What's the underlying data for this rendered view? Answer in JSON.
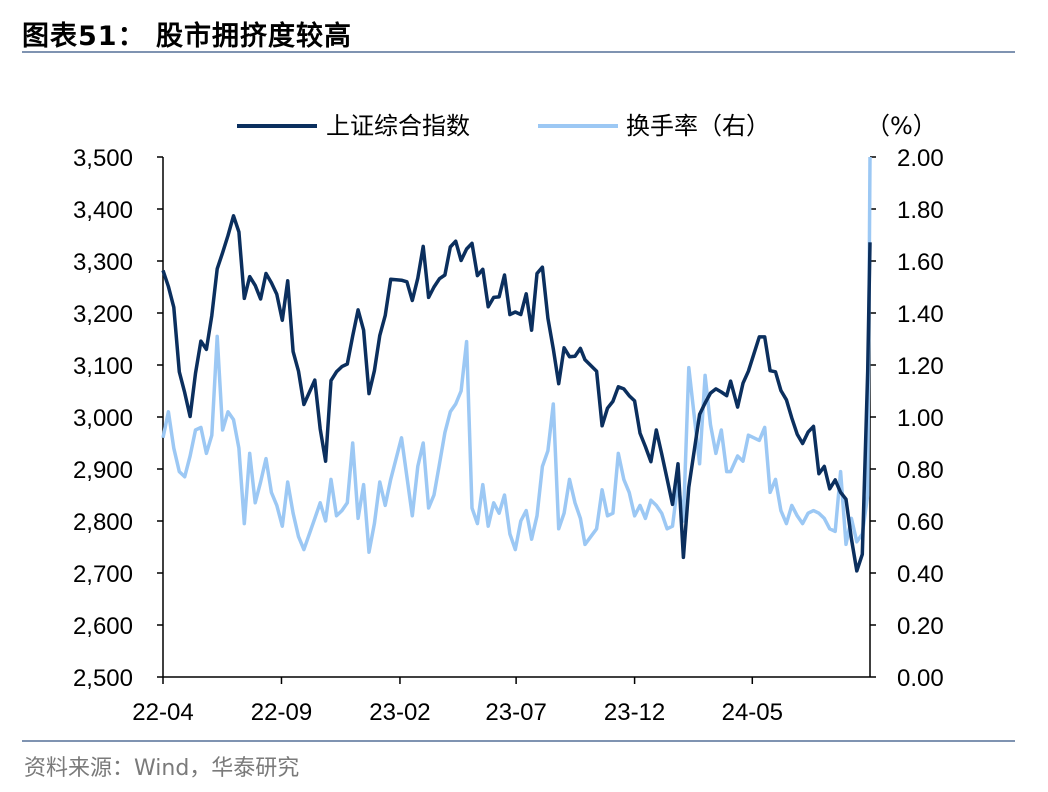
{
  "header": {
    "title": "图表51：  股市拥挤度较高"
  },
  "footer": {
    "source": "资料来源：Wind，华泰研究"
  },
  "colors": {
    "index_line": "#0b2f5e",
    "turnover_line": "#9cc8f4",
    "rule": "#7f93b1"
  },
  "chart_data": {
    "type": "line",
    "title": "",
    "right_axis_unit": "（%）",
    "x_tick_labels": [
      "22-04",
      "22-09",
      "23-02",
      "23-07",
      "23-12",
      "24-05"
    ],
    "x_range": [
      "2022-04",
      "2024-09"
    ],
    "y_left": {
      "ticks": [
        "2,500",
        "2,600",
        "2,700",
        "2,800",
        "2,900",
        "3,000",
        "3,100",
        "3,200",
        "3,300",
        "3,400",
        "3,500"
      ],
      "ylim": [
        2500,
        3500
      ]
    },
    "y_right": {
      "ticks": [
        "0.00",
        "0.20",
        "0.40",
        "0.60",
        "0.80",
        "1.00",
        "1.20",
        "1.40",
        "1.60",
        "1.80",
        "2.00"
      ],
      "ylim": [
        0,
        2.0
      ]
    },
    "legend_position": "top",
    "series": [
      {
        "name": "上证综合指数",
        "axis": "left",
        "x": [
          "2022-04-01",
          "2022-04-08",
          "2022-04-15",
          "2022-04-22",
          "2022-04-29",
          "2022-05-06",
          "2022-05-13",
          "2022-05-20",
          "2022-05-27",
          "2022-06-03",
          "2022-06-10",
          "2022-06-17",
          "2022-06-24",
          "2022-07-01",
          "2022-07-08",
          "2022-07-15",
          "2022-07-22",
          "2022-07-29",
          "2022-08-05",
          "2022-08-12",
          "2022-08-19",
          "2022-08-26",
          "2022-09-02",
          "2022-09-09",
          "2022-09-16",
          "2022-09-23",
          "2022-09-30",
          "2022-10-14",
          "2022-10-21",
          "2022-10-28",
          "2022-11-04",
          "2022-11-11",
          "2022-11-18",
          "2022-11-25",
          "2022-12-02",
          "2022-12-09",
          "2022-12-16",
          "2022-12-23",
          "2022-12-30",
          "2023-01-06",
          "2023-01-13",
          "2023-01-20",
          "2023-02-03",
          "2023-02-10",
          "2023-02-17",
          "2023-02-24",
          "2023-03-03",
          "2023-03-10",
          "2023-03-17",
          "2023-03-24",
          "2023-03-31",
          "2023-04-07",
          "2023-04-14",
          "2023-04-21",
          "2023-04-28",
          "2023-05-05",
          "2023-05-12",
          "2023-05-19",
          "2023-05-26",
          "2023-06-02",
          "2023-06-09",
          "2023-06-16",
          "2023-06-23",
          "2023-06-30",
          "2023-07-07",
          "2023-07-14",
          "2023-07-21",
          "2023-07-28",
          "2023-08-04",
          "2023-08-11",
          "2023-08-18",
          "2023-08-25",
          "2023-09-01",
          "2023-09-08",
          "2023-09-15",
          "2023-09-22",
          "2023-09-28",
          "2023-10-13",
          "2023-10-20",
          "2023-10-27",
          "2023-11-03",
          "2023-11-10",
          "2023-11-17",
          "2023-11-24",
          "2023-12-01",
          "2023-12-08",
          "2023-12-15",
          "2023-12-22",
          "2023-12-29",
          "2024-01-05",
          "2024-01-12",
          "2024-01-19",
          "2024-01-26",
          "2024-02-02",
          "2024-02-09",
          "2024-02-23",
          "2024-03-01",
          "2024-03-08",
          "2024-03-15",
          "2024-03-22",
          "2024-03-29",
          "2024-04-03",
          "2024-04-12",
          "2024-04-19",
          "2024-04-26",
          "2024-05-10",
          "2024-05-17",
          "2024-05-24",
          "2024-05-31",
          "2024-06-07",
          "2024-06-14",
          "2024-06-21",
          "2024-06-28",
          "2024-07-05",
          "2024-07-12",
          "2024-07-19",
          "2024-07-26",
          "2024-08-02",
          "2024-08-09",
          "2024-08-16",
          "2024-08-23",
          "2024-08-30",
          "2024-09-06",
          "2024-09-13",
          "2024-09-20",
          "2024-09-27",
          "2024-09-30"
        ],
        "values": [
          3282,
          3251,
          3211,
          3087,
          3047,
          3001,
          3084,
          3146,
          3130,
          3195,
          3285,
          3316,
          3349,
          3387,
          3356,
          3228,
          3270,
          3253,
          3227,
          3276,
          3258,
          3236,
          3186,
          3262,
          3126,
          3088,
          3024,
          3071,
          2977,
          2915,
          3070,
          3087,
          3097,
          3102,
          3156,
          3206,
          3167,
          3045,
          3089,
          3157,
          3195,
          3265,
          3263,
          3260,
          3224,
          3267,
          3328,
          3230,
          3250,
          3266,
          3273,
          3327,
          3338,
          3301,
          3323,
          3334,
          3272,
          3284,
          3212,
          3230,
          3231,
          3273,
          3197,
          3202,
          3197,
          3237,
          3167,
          3276,
          3288,
          3190,
          3131,
          3064,
          3133,
          3116,
          3117,
          3132,
          3110,
          3088,
          2983,
          3017,
          3030,
          3058,
          3054,
          3041,
          3031,
          2969,
          2943,
          2914,
          2975,
          2929,
          2881,
          2832,
          2910,
          2730,
          2865,
          3005,
          3027,
          3046,
          3054,
          3048,
          3041,
          3069,
          3019,
          3065,
          3088,
          3154,
          3154,
          3089,
          3087,
          3051,
          3033,
          2998,
          2967,
          2949,
          2971,
          2982,
          2891,
          2905,
          2862,
          2879,
          2855,
          2842,
          2766,
          2704,
          2736,
          3088,
          3336
        ]
      },
      {
        "name": "换手率（右）",
        "axis": "right",
        "x": [
          "2022-04-01",
          "2022-04-08",
          "2022-04-15",
          "2022-04-22",
          "2022-04-29",
          "2022-05-06",
          "2022-05-13",
          "2022-05-20",
          "2022-05-27",
          "2022-06-03",
          "2022-06-10",
          "2022-06-17",
          "2022-06-24",
          "2022-07-01",
          "2022-07-08",
          "2022-07-15",
          "2022-07-22",
          "2022-07-29",
          "2022-08-05",
          "2022-08-12",
          "2022-08-19",
          "2022-08-26",
          "2022-09-02",
          "2022-09-09",
          "2022-09-16",
          "2022-09-23",
          "2022-09-30",
          "2022-10-14",
          "2022-10-21",
          "2022-10-28",
          "2022-11-04",
          "2022-11-11",
          "2022-11-18",
          "2022-11-25",
          "2022-12-02",
          "2022-12-09",
          "2022-12-16",
          "2022-12-23",
          "2022-12-30",
          "2023-01-06",
          "2023-01-13",
          "2023-01-20",
          "2023-02-03",
          "2023-02-10",
          "2023-02-17",
          "2023-02-24",
          "2023-03-03",
          "2023-03-10",
          "2023-03-17",
          "2023-03-24",
          "2023-03-31",
          "2023-04-07",
          "2023-04-14",
          "2023-04-21",
          "2023-04-28",
          "2023-05-05",
          "2023-05-12",
          "2023-05-19",
          "2023-05-26",
          "2023-06-02",
          "2023-06-09",
          "2023-06-16",
          "2023-06-23",
          "2023-06-30",
          "2023-07-07",
          "2023-07-14",
          "2023-07-21",
          "2023-07-28",
          "2023-08-04",
          "2023-08-11",
          "2023-08-18",
          "2023-08-25",
          "2023-09-01",
          "2023-09-08",
          "2023-09-15",
          "2023-09-22",
          "2023-09-28",
          "2023-10-13",
          "2023-10-20",
          "2023-10-27",
          "2023-11-03",
          "2023-11-10",
          "2023-11-17",
          "2023-11-24",
          "2023-12-01",
          "2023-12-08",
          "2023-12-15",
          "2023-12-22",
          "2023-12-29",
          "2024-01-05",
          "2024-01-12",
          "2024-01-19",
          "2024-01-26",
          "2024-02-02",
          "2024-02-09",
          "2024-02-23",
          "2024-03-01",
          "2024-03-08",
          "2024-03-15",
          "2024-03-22",
          "2024-03-29",
          "2024-04-03",
          "2024-04-12",
          "2024-04-19",
          "2024-04-26",
          "2024-05-10",
          "2024-05-17",
          "2024-05-24",
          "2024-05-31",
          "2024-06-07",
          "2024-06-14",
          "2024-06-21",
          "2024-06-28",
          "2024-07-05",
          "2024-07-12",
          "2024-07-19",
          "2024-07-26",
          "2024-08-02",
          "2024-08-09",
          "2024-08-16",
          "2024-08-23",
          "2024-08-30",
          "2024-09-06",
          "2024-09-13",
          "2024-09-20",
          "2024-09-27",
          "2024-09-30"
        ],
        "values": [
          0.92,
          1.02,
          0.88,
          0.79,
          0.77,
          0.85,
          0.95,
          0.96,
          0.86,
          0.93,
          1.31,
          0.95,
          1.02,
          0.99,
          0.88,
          0.59,
          0.86,
          0.67,
          0.75,
          0.84,
          0.71,
          0.66,
          0.58,
          0.75,
          0.63,
          0.54,
          0.49,
          0.61,
          0.67,
          0.6,
          0.76,
          0.62,
          0.64,
          0.67,
          0.9,
          0.61,
          0.74,
          0.48,
          0.59,
          0.75,
          0.66,
          0.76,
          0.92,
          0.77,
          0.62,
          0.81,
          0.9,
          0.65,
          0.7,
          0.82,
          0.94,
          1.02,
          1.05,
          1.1,
          1.29,
          0.65,
          0.59,
          0.74,
          0.58,
          0.67,
          0.63,
          0.7,
          0.55,
          0.49,
          0.6,
          0.64,
          0.53,
          0.62,
          0.81,
          0.87,
          1.05,
          0.57,
          0.63,
          0.76,
          0.67,
          0.61,
          0.51,
          0.57,
          0.72,
          0.62,
          0.63,
          0.86,
          0.76,
          0.71,
          0.62,
          0.66,
          0.61,
          0.68,
          0.66,
          0.63,
          0.57,
          0.58,
          0.75,
          0.6,
          1.19,
          0.82,
          1.16,
          0.97,
          0.86,
          0.95,
          0.79,
          0.79,
          0.85,
          0.83,
          0.93,
          0.91,
          0.96,
          0.71,
          0.76,
          0.64,
          0.59,
          0.66,
          0.62,
          0.59,
          0.63,
          0.64,
          0.63,
          0.61,
          0.57,
          0.56,
          0.79,
          0.51,
          0.61,
          0.52,
          0.55,
          0.7,
          2.0
        ]
      }
    ]
  }
}
